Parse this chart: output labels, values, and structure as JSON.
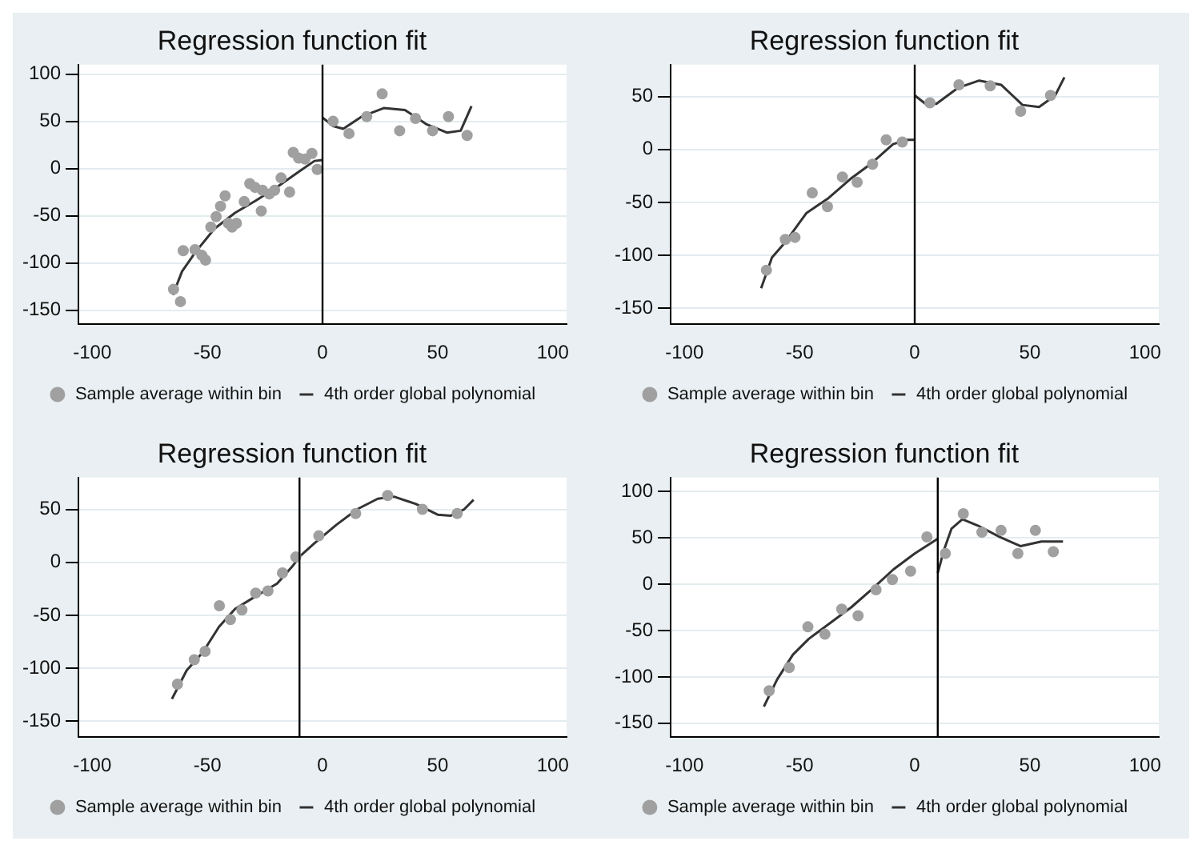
{
  "chart_data": [
    {
      "type": "scatter",
      "title": "Regression function fit",
      "xlim": [
        -106,
        106
      ],
      "xticks": [
        -100,
        -50,
        0,
        50,
        100
      ],
      "ylim": [
        -165,
        110
      ],
      "yticks": [
        -150,
        -100,
        -50,
        0,
        50,
        100
      ],
      "grid": "y",
      "legend": "bottom",
      "ref_lines": [
        {
          "axis": "x",
          "value": 0,
          "color": "#000000"
        }
      ],
      "series": [
        {
          "name": "Sample average within bin",
          "color": "#a0a0a0",
          "x": [
            -64.7,
            -61.7,
            -60.5,
            -55.4,
            -52.4,
            -50.8,
            -48.5,
            -46.2,
            -44.3,
            -42.3,
            -40.9,
            -39.3,
            -37.4,
            -34,
            -31.6,
            -29.3,
            -26.6,
            -26.1,
            -23.1,
            -20.8,
            -18,
            -14.3,
            -12.7,
            -10.4,
            -7.6,
            -4.6,
            -2.3,
            4.6,
            11.5,
            19.2,
            25.9,
            33.5,
            40.4,
            47.8,
            54.7,
            62.8
          ],
          "values": [
            -128,
            -141,
            -87,
            -86,
            -92,
            -97,
            -62,
            -51,
            -40,
            -29,
            -58,
            -62,
            -58,
            -35,
            -16,
            -20,
            -45,
            -23,
            -27,
            -23,
            -10,
            -25,
            17,
            11,
            10,
            16,
            -1,
            50,
            37,
            55,
            79,
            40,
            53,
            40,
            55,
            35
          ]
        },
        {
          "name": "4th order global polynomial",
          "type": "line",
          "color": "#333333",
          "x": [
            -65,
            -61,
            -55,
            -47,
            -38,
            -29,
            -20,
            -10,
            -3.5,
            0
          ],
          "values": [
            -134,
            -109,
            -88,
            -64,
            -47,
            -34,
            -20,
            -3,
            8,
            9
          ]
        },
        {
          "type": "line",
          "color": "#333333",
          "x": [
            0,
            4.6,
            9,
            17,
            26.6,
            35.8,
            45,
            54,
            60,
            64.7
          ],
          "values": [
            54,
            45,
            42,
            55,
            64,
            62,
            47,
            38,
            40,
            66
          ]
        }
      ]
    },
    {
      "type": "scatter",
      "title": "Regression function fit",
      "xlim": [
        -106,
        106
      ],
      "xticks": [
        -100,
        -50,
        0,
        50,
        100
      ],
      "ylim": [
        -165,
        80
      ],
      "yticks": [
        -150,
        -100,
        -50,
        0,
        50
      ],
      "grid": "y",
      "legend": "bottom",
      "ref_lines": [
        {
          "axis": "x",
          "value": 0,
          "color": "#000000"
        }
      ],
      "series": [
        {
          "name": "Sample average within bin",
          "color": "#a0a0a0",
          "x": [
            -64.4,
            -56.2,
            -52,
            -44.5,
            -37.9,
            -31.4,
            -25,
            -18.3,
            -12.4,
            -5.4,
            6.6,
            19.2,
            32.8,
            46,
            59
          ],
          "values": [
            -114,
            -85,
            -83,
            -41,
            -54,
            -26,
            -31,
            -14,
            9,
            7,
            44,
            61,
            60,
            36,
            51
          ]
        },
        {
          "name": "4th order global polynomial",
          "type": "line",
          "color": "#333333",
          "x": [
            -66.7,
            -62,
            -56,
            -47,
            -37.5,
            -28,
            -18.7,
            -9.4,
            -3.5,
            0
          ],
          "values": [
            -131,
            -102,
            -87,
            -60,
            -46,
            -28,
            -13,
            5,
            9,
            9
          ]
        },
        {
          "type": "line",
          "color": "#333333",
          "x": [
            0,
            4.7,
            9.4,
            18.7,
            28,
            37.5,
            46.8,
            54,
            61,
            65
          ],
          "values": [
            51,
            43,
            43,
            58,
            65,
            61,
            42,
            40,
            51,
            68
          ]
        }
      ]
    },
    {
      "type": "scatter",
      "title": "Regression function fit",
      "xlim": [
        -106,
        106
      ],
      "xticks": [
        -100,
        -50,
        0,
        50,
        100
      ],
      "ylim": [
        -165,
        80
      ],
      "yticks": [
        -150,
        -100,
        -50,
        0,
        50
      ],
      "grid": "y",
      "legend": "bottom",
      "ref_lines": [
        {
          "axis": "x",
          "value": -10,
          "color": "#000000"
        }
      ],
      "series": [
        {
          "name": "Sample average within bin",
          "color": "#a0a0a0",
          "x": [
            -63,
            -55.7,
            -51,
            -44.8,
            -40,
            -35,
            -29,
            -23.7,
            -17.4,
            -11.6,
            -1.6,
            14.4,
            28.3,
            43.4,
            58.5
          ],
          "values": [
            -115,
            -92,
            -84,
            -41,
            -54,
            -45,
            -29,
            -27,
            -10,
            5,
            25,
            46,
            63,
            50,
            46
          ]
        },
        {
          "name": "4th order global polynomial",
          "type": "line",
          "color": "#333333",
          "x": [
            -65.4,
            -59,
            -52,
            -45,
            -38,
            -29,
            -19.7,
            -12.8,
            -9.7,
            -3.5,
            5.8,
            15,
            24,
            31,
            40.6,
            50,
            55.7,
            61.5,
            65.6
          ],
          "values": [
            -129,
            -102,
            -85,
            -61,
            -44,
            -32,
            -20,
            -3,
            6,
            18,
            35,
            50,
            60,
            62,
            55,
            45,
            44,
            50,
            59
          ]
        }
      ]
    },
    {
      "type": "scatter",
      "title": "Regression function fit",
      "xlim": [
        -106,
        106
      ],
      "xticks": [
        -100,
        -50,
        0,
        50,
        100
      ],
      "ylim": [
        -165,
        115
      ],
      "yticks": [
        -150,
        -100,
        -50,
        0,
        50,
        100
      ],
      "grid": "y",
      "legend": "bottom",
      "ref_lines": [
        {
          "axis": "x",
          "value": 10,
          "color": "#000000"
        }
      ],
      "series": [
        {
          "name": "Sample average within bin",
          "color": "#a0a0a0",
          "x": [
            -63.2,
            -54.5,
            -46.4,
            -39,
            -31.7,
            -24.6,
            -16.8,
            -9.7,
            -1.8,
            5.3,
            13.3,
            21.1,
            29.2,
            37.5,
            44.8,
            52.4,
            60.2
          ],
          "values": [
            -115,
            -90,
            -46,
            -54,
            -27,
            -34,
            -6,
            5,
            14,
            51,
            33,
            76,
            56,
            58,
            33,
            58,
            35
          ]
        },
        {
          "name": "4th order global polynomial",
          "type": "line",
          "color": "#333333",
          "x": [
            -65.5,
            -59.8,
            -52.9,
            -46,
            -36.8,
            -27.6,
            -18.4,
            -9.2,
            0,
            10
          ],
          "values": [
            -132,
            -103,
            -76,
            -59,
            -42,
            -25,
            -5,
            16,
            33,
            49
          ]
        },
        {
          "type": "line",
          "color": "#333333",
          "x": [
            10,
            12.6,
            16,
            20.7,
            27.6,
            36.8,
            46,
            55,
            64.4
          ],
          "values": [
            12,
            36,
            60,
            70,
            63,
            51,
            41,
            46,
            46
          ]
        }
      ]
    }
  ]
}
